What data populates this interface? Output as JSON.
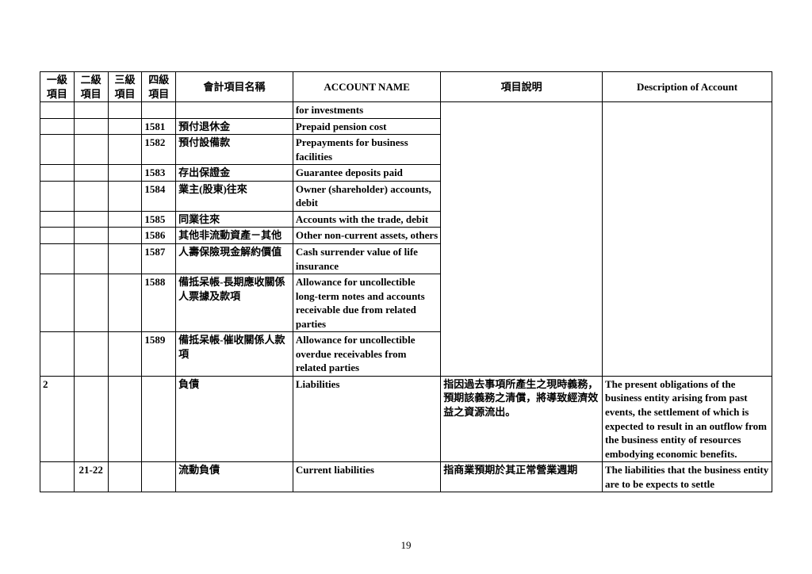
{
  "headers": {
    "lvl1": "一級項目",
    "lvl2": "二級項目",
    "lvl3": "三級項目",
    "lvl4": "四級項目",
    "name_cn": "會計項目名稱",
    "name_en": "ACCOUNT NAME",
    "desc_cn": "項目說明",
    "desc_en": "Description of Account"
  },
  "rows": [
    {
      "lvl1": "",
      "lvl2": "",
      "lvl3": "",
      "lvl4": "",
      "name_cn": "",
      "name_en": "for investments",
      "desc_cn": "",
      "desc_en": "",
      "merge_desc_top": true
    },
    {
      "lvl1": "",
      "lvl2": "",
      "lvl3": "",
      "lvl4": "1581",
      "name_cn": "預付退休金",
      "name_en": "Prepaid pension cost",
      "desc_cn": "",
      "desc_en": "",
      "merge_desc_both": true
    },
    {
      "lvl1": "",
      "lvl2": "",
      "lvl3": "",
      "lvl4": "1582",
      "name_cn": "預付設備款",
      "name_en": "Prepayments for business facilities",
      "desc_cn": "",
      "desc_en": "",
      "merge_desc_both": true
    },
    {
      "lvl1": "",
      "lvl2": "",
      "lvl3": "",
      "lvl4": "1583",
      "name_cn": "存出保證金",
      "name_en": "Guarantee deposits paid",
      "desc_cn": "",
      "desc_en": "",
      "merge_desc_both": true
    },
    {
      "lvl1": "",
      "lvl2": "",
      "lvl3": "",
      "lvl4": "1584",
      "name_cn": "業主(股東)往來",
      "name_en": "Owner (shareholder) accounts, debit",
      "desc_cn": "",
      "desc_en": "",
      "merge_desc_both": true
    },
    {
      "lvl1": "",
      "lvl2": "",
      "lvl3": "",
      "lvl4": "1585",
      "name_cn": "同業往來",
      "name_en": "Accounts with the trade, debit",
      "desc_cn": "",
      "desc_en": "",
      "merge_desc_both": true
    },
    {
      "lvl1": "",
      "lvl2": "",
      "lvl3": "",
      "lvl4": "1586",
      "name_cn": "其他非流動資產－其他",
      "name_en": "Other non-current assets, others",
      "desc_cn": "",
      "desc_en": "",
      "merge_desc_both": true
    },
    {
      "lvl1": "",
      "lvl2": "",
      "lvl3": "",
      "lvl4": "1587",
      "name_cn": "人壽保險現金解約價值",
      "name_en": "Cash surrender value of life insurance",
      "desc_cn": "",
      "desc_en": "",
      "merge_desc_both": true
    },
    {
      "lvl1": "",
      "lvl2": "",
      "lvl3": "",
      "lvl4": "1588",
      "name_cn": "備抵呆帳-長期應收關係人票據及款項",
      "name_en": "Allowance for uncollectible long-term notes and accounts receivable due from related parties",
      "desc_cn": "",
      "desc_en": "",
      "merge_desc_both": true
    },
    {
      "lvl1": "",
      "lvl2": "",
      "lvl3": "",
      "lvl4": "1589",
      "name_cn": "備抵呆帳-催收關係人款項",
      "name_en": "Allowance for uncollectible overdue receivables from related parties",
      "desc_cn": "",
      "desc_en": "",
      "merge_desc_bottom": true
    },
    {
      "lvl1": "2",
      "lvl2": "",
      "lvl3": "",
      "lvl4": "",
      "name_cn": "負債",
      "name_en": "Liabilities",
      "desc_cn": "指因過去事項所產生之現時義務，預期該義務之清償，將導致經濟效益之資源流出。",
      "desc_en": "The present obligations of the business entity arising from past events, the settlement of which is expected to result in an outflow from the business entity of resources embodying economic benefits."
    },
    {
      "lvl1": "",
      "lvl2": "21-22",
      "lvl3": "",
      "lvl4": "",
      "name_cn": "流動負債",
      "name_en": "Current liabilities",
      "desc_cn": "指商業預期於其正常營業週期",
      "desc_en": "The liabilities that the business entity are to be expects to settle"
    }
  ],
  "page_number": "19",
  "style": {
    "border_color": "#000000",
    "background_color": "#ffffff",
    "font_size": 13,
    "header_font_weight": "bold"
  }
}
